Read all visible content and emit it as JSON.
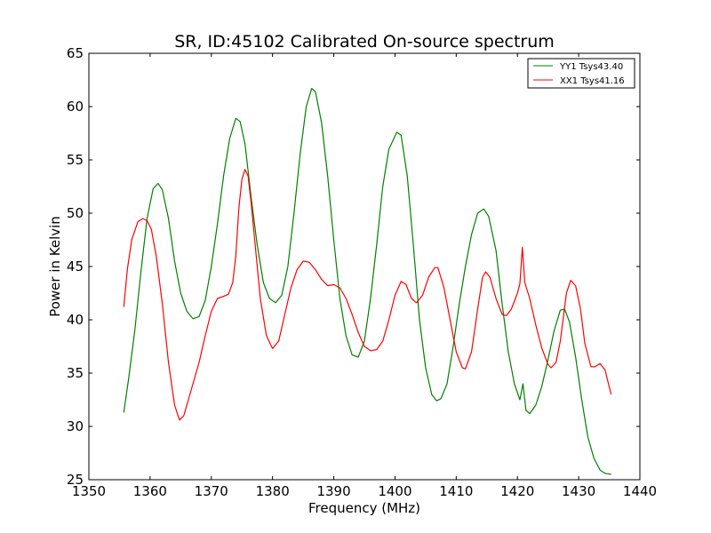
{
  "chart_data": {
    "type": "line",
    "title": "SR, ID:45102 Calibrated On-source spectrum",
    "xlabel": "Frequency (MHz)",
    "ylabel": "Power in Kelvin",
    "xlim": [
      1350,
      1440
    ],
    "ylim": [
      25,
      65
    ],
    "xticks": [
      1350,
      1360,
      1370,
      1380,
      1390,
      1400,
      1410,
      1420,
      1430,
      1440
    ],
    "yticks": [
      25,
      30,
      35,
      40,
      45,
      50,
      55,
      60,
      65
    ],
    "legend_position": "top-right",
    "grid": false,
    "series": [
      {
        "name": "YY1 Tsys43.40",
        "color": "#008000",
        "points": [
          [
            1355.7,
            31.3
          ],
          [
            1356.5,
            34.5
          ],
          [
            1357.5,
            39.0
          ],
          [
            1358.5,
            44.5
          ],
          [
            1359.5,
            49.5
          ],
          [
            1360.5,
            52.3
          ],
          [
            1361.3,
            52.8
          ],
          [
            1362.0,
            52.2
          ],
          [
            1363.0,
            49.5
          ],
          [
            1364.0,
            45.5
          ],
          [
            1365.0,
            42.5
          ],
          [
            1366.0,
            40.8
          ],
          [
            1367.0,
            40.1
          ],
          [
            1368.0,
            40.3
          ],
          [
            1369.0,
            41.8
          ],
          [
            1370.0,
            45.0
          ],
          [
            1371.0,
            49.0
          ],
          [
            1372.0,
            53.5
          ],
          [
            1373.0,
            57.0
          ],
          [
            1374.0,
            58.9
          ],
          [
            1374.7,
            58.6
          ],
          [
            1375.5,
            56.5
          ],
          [
            1376.5,
            51.5
          ],
          [
            1377.5,
            47.0
          ],
          [
            1378.5,
            43.5
          ],
          [
            1379.5,
            42.0
          ],
          [
            1380.5,
            41.6
          ],
          [
            1381.5,
            42.3
          ],
          [
            1382.5,
            45.0
          ],
          [
            1383.5,
            50.0
          ],
          [
            1384.5,
            55.5
          ],
          [
            1385.5,
            60.0
          ],
          [
            1386.4,
            61.7
          ],
          [
            1387.0,
            61.4
          ],
          [
            1388.0,
            58.5
          ],
          [
            1389.0,
            53.5
          ],
          [
            1390.0,
            47.5
          ],
          [
            1391.0,
            42.0
          ],
          [
            1392.0,
            38.5
          ],
          [
            1393.0,
            36.7
          ],
          [
            1394.0,
            36.5
          ],
          [
            1395.0,
            38.0
          ],
          [
            1396.0,
            42.0
          ],
          [
            1397.0,
            47.0
          ],
          [
            1398.0,
            52.5
          ],
          [
            1399.0,
            56.0
          ],
          [
            1400.3,
            57.6
          ],
          [
            1401.0,
            57.3
          ],
          [
            1402.0,
            53.5
          ],
          [
            1403.0,
            47.0
          ],
          [
            1404.0,
            40.0
          ],
          [
            1405.0,
            35.5
          ],
          [
            1406.0,
            33.0
          ],
          [
            1406.8,
            32.4
          ],
          [
            1407.5,
            32.6
          ],
          [
            1408.5,
            34.0
          ],
          [
            1409.5,
            37.5
          ],
          [
            1410.5,
            41.5
          ],
          [
            1411.5,
            45.0
          ],
          [
            1412.5,
            48.0
          ],
          [
            1413.5,
            50.0
          ],
          [
            1414.5,
            50.4
          ],
          [
            1415.3,
            49.7
          ],
          [
            1416.5,
            46.5
          ],
          [
            1417.5,
            41.5
          ],
          [
            1418.5,
            37.0
          ],
          [
            1419.5,
            34.0
          ],
          [
            1420.4,
            32.5
          ],
          [
            1420.9,
            34.0
          ],
          [
            1421.4,
            31.5
          ],
          [
            1422.0,
            31.2
          ],
          [
            1423.0,
            32.0
          ],
          [
            1424.0,
            33.8
          ],
          [
            1425.0,
            36.3
          ],
          [
            1426.0,
            39.0
          ],
          [
            1427.0,
            40.9
          ],
          [
            1427.7,
            41.0
          ],
          [
            1428.5,
            39.8
          ],
          [
            1429.5,
            36.5
          ],
          [
            1430.5,
            32.5
          ],
          [
            1431.5,
            29.0
          ],
          [
            1432.5,
            27.0
          ],
          [
            1433.5,
            25.9
          ],
          [
            1434.3,
            25.6
          ],
          [
            1435.3,
            25.5
          ]
        ]
      },
      {
        "name": "XX1 Tsys41.16",
        "color": "#ff0000",
        "points": [
          [
            1355.7,
            41.2
          ],
          [
            1356.3,
            44.8
          ],
          [
            1357.0,
            47.5
          ],
          [
            1358.0,
            49.2
          ],
          [
            1358.8,
            49.5
          ],
          [
            1359.5,
            49.3
          ],
          [
            1360.2,
            48.5
          ],
          [
            1361.0,
            46.0
          ],
          [
            1362.0,
            41.5
          ],
          [
            1363.0,
            36.0
          ],
          [
            1364.0,
            32.0
          ],
          [
            1364.8,
            30.6
          ],
          [
            1365.5,
            31.0
          ],
          [
            1366.5,
            33.0
          ],
          [
            1368.0,
            36.0
          ],
          [
            1369.0,
            38.5
          ],
          [
            1370.0,
            40.8
          ],
          [
            1371.0,
            42.0
          ],
          [
            1372.0,
            42.2
          ],
          [
            1372.8,
            42.4
          ],
          [
            1373.5,
            43.5
          ],
          [
            1374.0,
            46.0
          ],
          [
            1374.5,
            50.5
          ],
          [
            1375.0,
            53.2
          ],
          [
            1375.5,
            54.1
          ],
          [
            1376.0,
            53.5
          ],
          [
            1376.5,
            51.0
          ],
          [
            1377.0,
            48.0
          ],
          [
            1378.0,
            42.0
          ],
          [
            1379.0,
            38.5
          ],
          [
            1380.0,
            37.3
          ],
          [
            1381.0,
            38.0
          ],
          [
            1382.0,
            40.5
          ],
          [
            1383.0,
            43.0
          ],
          [
            1384.0,
            44.7
          ],
          [
            1385.0,
            45.5
          ],
          [
            1386.0,
            45.4
          ],
          [
            1387.0,
            44.7
          ],
          [
            1388.0,
            43.8
          ],
          [
            1389.0,
            43.2
          ],
          [
            1390.0,
            43.3
          ],
          [
            1391.0,
            43.0
          ],
          [
            1392.0,
            42.0
          ],
          [
            1393.0,
            40.5
          ],
          [
            1394.0,
            38.8
          ],
          [
            1395.0,
            37.5
          ],
          [
            1396.0,
            37.1
          ],
          [
            1397.0,
            37.2
          ],
          [
            1398.0,
            38.0
          ],
          [
            1399.0,
            40.0
          ],
          [
            1400.0,
            42.3
          ],
          [
            1401.0,
            43.6
          ],
          [
            1401.8,
            43.3
          ],
          [
            1402.7,
            42.0
          ],
          [
            1403.5,
            41.6
          ],
          [
            1404.5,
            42.3
          ],
          [
            1405.5,
            44.0
          ],
          [
            1406.5,
            44.9
          ],
          [
            1407.0,
            44.9
          ],
          [
            1408.0,
            43.0
          ],
          [
            1409.0,
            40.0
          ],
          [
            1410.0,
            37.0
          ],
          [
            1411.0,
            35.5
          ],
          [
            1411.5,
            35.4
          ],
          [
            1412.5,
            37.0
          ],
          [
            1413.5,
            41.0
          ],
          [
            1414.3,
            44.0
          ],
          [
            1414.8,
            44.5
          ],
          [
            1415.5,
            44.0
          ],
          [
            1416.5,
            42.0
          ],
          [
            1417.5,
            40.5
          ],
          [
            1418.2,
            40.4
          ],
          [
            1419.0,
            41.0
          ],
          [
            1420.0,
            42.5
          ],
          [
            1420.4,
            43.4
          ],
          [
            1420.8,
            46.8
          ],
          [
            1421.2,
            43.5
          ],
          [
            1422.0,
            42.0
          ],
          [
            1423.0,
            39.5
          ],
          [
            1424.0,
            37.3
          ],
          [
            1425.0,
            35.8
          ],
          [
            1425.5,
            35.5
          ],
          [
            1426.3,
            36.0
          ],
          [
            1427.0,
            38.0
          ],
          [
            1428.0,
            42.5
          ],
          [
            1428.7,
            43.7
          ],
          [
            1429.5,
            43.2
          ],
          [
            1430.3,
            41.0
          ],
          [
            1431.0,
            37.8
          ],
          [
            1432.0,
            35.6
          ],
          [
            1432.7,
            35.6
          ],
          [
            1433.5,
            35.9
          ],
          [
            1434.3,
            35.3
          ],
          [
            1435.3,
            33.0
          ]
        ]
      }
    ]
  }
}
